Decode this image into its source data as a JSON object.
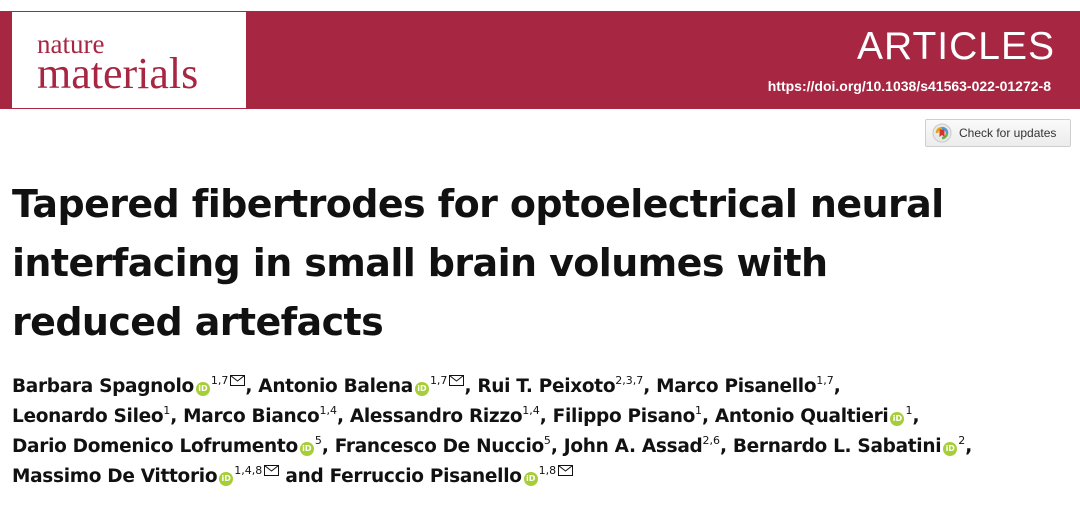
{
  "header": {
    "journal_line1": "nature",
    "journal_line2": "materials",
    "section": "ARTICLES",
    "doi": "https://doi.org/10.1038/s41563-022-01272-8",
    "brand_color": "#a72743"
  },
  "updates_button": {
    "label": "Check for updates",
    "icon": "check-for-updates-icon"
  },
  "article": {
    "title_lines": [
      "Tapered fibertrodes for optoelectrical neural",
      "interfacing in small brain volumes with",
      "reduced artefacts"
    ]
  },
  "authors": {
    "a1_name": "Barbara Spagnolo",
    "a1_aff": "1,7",
    "a2_name": "Antonio Balena",
    "a2_aff": "1,7",
    "a3_name": "Rui T. Peixoto",
    "a3_aff": "2,3,7",
    "a4_name": "Marco Pisanello",
    "a4_aff": "1,7",
    "a5_name": "Leonardo Sileo",
    "a5_aff": "1",
    "a6_name": "Marco Bianco",
    "a6_aff": "1,4",
    "a7_name": "Alessandro Rizzo",
    "a7_aff": "1,4",
    "a8_name": "Filippo Pisano",
    "a8_aff": "1",
    "a9_name": "Antonio Qualtieri",
    "a9_aff": "1",
    "a10_name": "Dario Domenico Lofrumento",
    "a10_aff": "5",
    "a11_name": "Francesco De Nuccio",
    "a11_aff": "5",
    "a12_name": "John A. Assad",
    "a12_aff": "2,6",
    "a13_name": "Bernardo L. Sabatini",
    "a13_aff": "2",
    "a14_name": "Massimo De Vittorio",
    "a14_aff": "1,4,8",
    "conjunction": "and",
    "a15_name": "Ferruccio Pisanello",
    "a15_aff": "1,8",
    "orcid_color": "#a6ce39",
    "orcid_icon": "orcid-icon",
    "email_icon": "envelope-icon"
  }
}
